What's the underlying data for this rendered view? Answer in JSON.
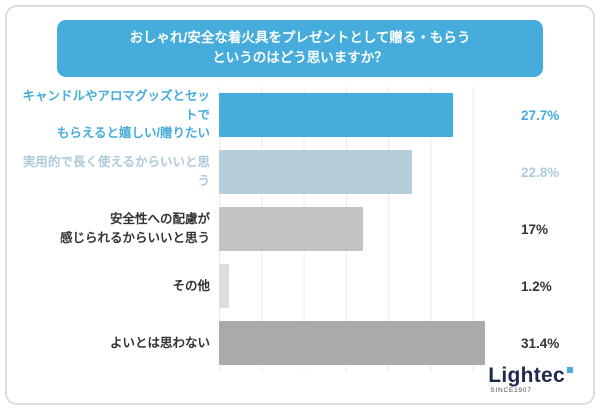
{
  "title": {
    "line1": "おしゃれ/安全な着火具をプレゼントとして贈る・もらう",
    "line2": "というのはどう思いますか？"
  },
  "chart_data": {
    "type": "bar",
    "orientation": "horizontal",
    "title": "おしゃれ/安全な着火具をプレゼントとして贈る・もらうというのはどう思いますか？",
    "categories": [
      "キャンドルやアロマグッズとセットで\nもらえると嬉しい/贈りたい",
      "実用的で長く使えるからいいと思う",
      "安全性への配慮が\n感じられるからいいと思う",
      "その他",
      "よいとは思わない"
    ],
    "values": [
      27.7,
      22.8,
      17,
      1.2,
      31.4
    ],
    "value_labels": [
      "27.7%",
      "22.8%",
      "17%",
      "1.2%",
      "31.4%"
    ],
    "bar_colors": [
      "#45ACDB",
      "#B5CEDC",
      "#C2C3C4",
      "#DCDDDE",
      "#A9AAAC"
    ],
    "label_colors": [
      "#45ACDB",
      "#AECADA",
      "#333333",
      "#333333",
      "#333333"
    ],
    "xlim": [
      0,
      35
    ],
    "grid": true,
    "grid_interval": 5,
    "legend": "none"
  },
  "logo": {
    "name": "Lightec",
    "sub": "SINCE1907",
    "accent_color": "#45ACDB"
  }
}
